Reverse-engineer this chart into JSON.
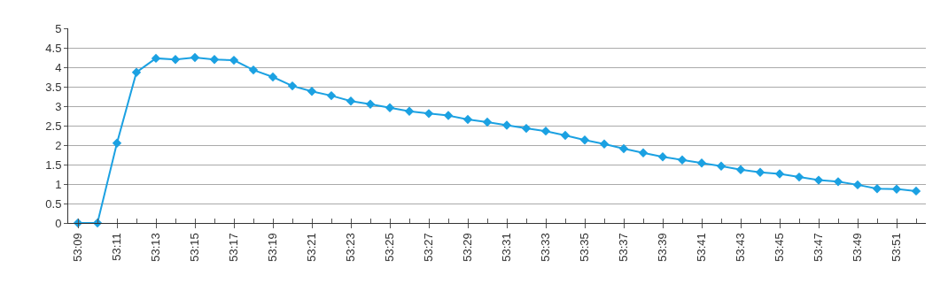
{
  "chart_data": {
    "type": "line",
    "categories": [
      "53:09",
      null,
      "53:11",
      null,
      "53:13",
      null,
      "53:15",
      null,
      "53:17",
      null,
      "53:19",
      null,
      "53:21",
      null,
      "53:23",
      null,
      "53:25",
      null,
      "53:27",
      null,
      "53:29",
      null,
      "53:31",
      null,
      "53:33",
      null,
      "53:35",
      null,
      "53:37",
      null,
      "53:39",
      null,
      "53:41",
      null,
      "53:43",
      null,
      "53:45",
      null,
      "53:47",
      null,
      "53:49",
      null,
      "53:51",
      null
    ],
    "series": [
      {
        "color": "#1ba1e2",
        "values": [
          0,
          0,
          2.05,
          3.87,
          4.23,
          4.2,
          4.25,
          4.2,
          4.18,
          3.93,
          3.75,
          3.52,
          3.38,
          3.27,
          3.13,
          3.05,
          2.96,
          2.87,
          2.81,
          2.76,
          2.66,
          2.59,
          2.51,
          2.43,
          2.36,
          2.25,
          2.13,
          2.03,
          1.91,
          1.8,
          1.7,
          1.62,
          1.54,
          1.46,
          1.37,
          1.3,
          1.26,
          1.18,
          1.1,
          1.06,
          0.98,
          0.88,
          0.87,
          0.82
        ]
      }
    ],
    "ylim": [
      0,
      5
    ],
    "yticks": [
      0,
      0.5,
      1,
      1.5,
      2,
      2.5,
      3,
      3.5,
      4,
      4.5,
      5
    ],
    "grid": "y",
    "marker": "diamond",
    "line_style": "solid"
  }
}
